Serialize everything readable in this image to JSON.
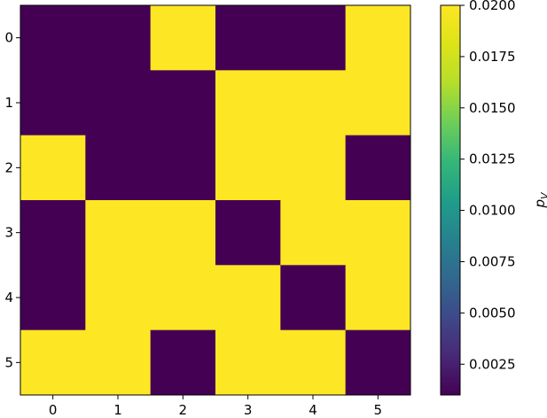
{
  "chart_data": {
    "type": "heatmap",
    "title": "",
    "xlabel": "",
    "ylabel": "",
    "x_ticks": [
      "0",
      "1",
      "2",
      "3",
      "4",
      "5"
    ],
    "y_ticks": [
      "0",
      "1",
      "2",
      "3",
      "4",
      "5"
    ],
    "matrix": [
      [
        0.001,
        0.001,
        0.02,
        0.001,
        0.001,
        0.02
      ],
      [
        0.001,
        0.001,
        0.001,
        0.02,
        0.02,
        0.02
      ],
      [
        0.02,
        0.001,
        0.001,
        0.02,
        0.02,
        0.001
      ],
      [
        0.001,
        0.02,
        0.02,
        0.001,
        0.02,
        0.02
      ],
      [
        0.001,
        0.02,
        0.02,
        0.02,
        0.001,
        0.02
      ],
      [
        0.02,
        0.02,
        0.001,
        0.02,
        0.02,
        0.001
      ]
    ],
    "colormap": "viridis",
    "colors": {
      "low": "#440154",
      "high": "#fde725"
    },
    "colorbar": {
      "label": "p_V",
      "label_main": "p",
      "label_sub": "V",
      "range": [
        0.001,
        0.02
      ],
      "ticks": [
        0.0025,
        0.005,
        0.0075,
        0.01,
        0.0125,
        0.015,
        0.0175,
        0.02
      ],
      "tick_labels": [
        "0.0025",
        "0.0050",
        "0.0075",
        "0.0100",
        "0.0125",
        "0.0150",
        "0.0175",
        "0.0200"
      ],
      "position": "right"
    },
    "grid": false
  }
}
